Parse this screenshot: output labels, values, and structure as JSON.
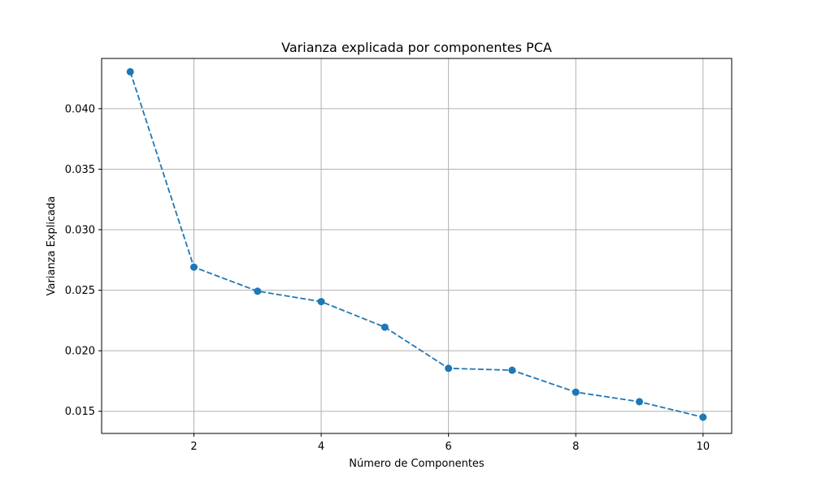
{
  "chart_data": {
    "type": "line",
    "title": "Varianza explicada por componentes PCA",
    "xlabel": "Número de Componentes",
    "ylabel": "Varianza Explicada",
    "xlim": [
      0.55,
      10.45
    ],
    "ylim": [
      0.01317,
      0.04415
    ],
    "xticks": [
      2,
      4,
      6,
      8,
      10
    ],
    "xtick_labels": [
      "2",
      "4",
      "6",
      "8",
      "10"
    ],
    "yticks": [
      0.015,
      0.02,
      0.025,
      0.03,
      0.035,
      0.04
    ],
    "ytick_labels": [
      "0.015",
      "0.020",
      "0.025",
      "0.030",
      "0.035",
      "0.040"
    ],
    "grid": true,
    "series": [
      {
        "x": [
          1,
          2,
          3,
          4,
          5,
          6,
          7,
          8,
          9,
          10
        ],
        "values": [
          0.04305,
          0.02691,
          0.02492,
          0.02406,
          0.02195,
          0.01855,
          0.01839,
          0.01658,
          0.01579,
          0.01451
        ],
        "color": "#1f77b4",
        "line_style": "dashed",
        "marker": "circle"
      }
    ]
  }
}
